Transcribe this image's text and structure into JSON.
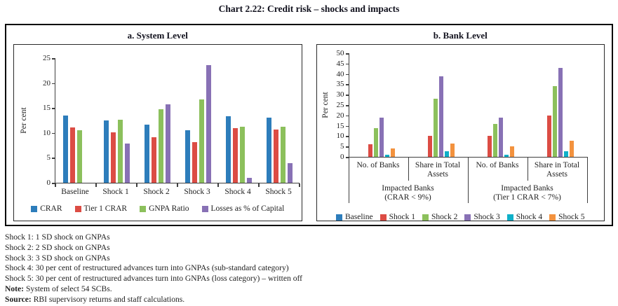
{
  "title": "Chart 2.22: Credit risk – shocks and impacts",
  "chart_data": [
    {
      "type": "bar",
      "title": "a. System Level",
      "ylabel": "Per cent",
      "ylim": [
        0,
        25
      ],
      "yticks": [
        0,
        5,
        10,
        15,
        20,
        25
      ],
      "grid": false,
      "legend_position": "bottom",
      "categories": [
        "Baseline",
        "Shock 1",
        "Shock 2",
        "Shock 3",
        "Shock 4",
        "Shock 5"
      ],
      "series": [
        {
          "name": "CRAR",
          "color": "#2D7DBB",
          "values": [
            13.5,
            12.5,
            11.6,
            10.6,
            13.4,
            13.1
          ]
        },
        {
          "name": "Tier 1 CRAR",
          "color": "#DC4C44",
          "values": [
            11.1,
            10.1,
            9.2,
            8.2,
            11.0,
            10.7
          ]
        },
        {
          "name": "GNPA Ratio",
          "color": "#8CC05C",
          "values": [
            10.6,
            12.6,
            14.7,
            16.7,
            11.2,
            11.2
          ]
        },
        {
          "name": "Losses as % of Capital",
          "color": "#8871B5",
          "values": [
            0,
            7.9,
            15.7,
            23.6,
            1.0,
            3.9
          ]
        }
      ]
    },
    {
      "type": "bar",
      "title": "b. Bank Level",
      "ylabel": "Per cent",
      "ylim": [
        0,
        50
      ],
      "yticks": [
        0,
        5,
        10,
        15,
        20,
        25,
        30,
        35,
        40,
        45,
        50
      ],
      "grid": false,
      "legend_position": "bottom",
      "categories": [
        "No. of Banks",
        "Share in Total Assets",
        "No. of Banks",
        "Share in Total Assets"
      ],
      "group_labels": [
        {
          "line1": "Impacted Banks",
          "line2": "(CRAR < 9%)"
        },
        {
          "line1": "Impacted Banks",
          "line2": "(Tier 1 CRAR < 7%)"
        }
      ],
      "series": [
        {
          "name": "Baseline",
          "color": "#2D7DBB",
          "values": [
            0,
            0,
            0,
            0
          ]
        },
        {
          "name": "Shock 1",
          "color": "#DC4C44",
          "values": [
            6,
            10,
            10,
            20
          ]
        },
        {
          "name": "Shock 2",
          "color": "#8CC05C",
          "values": [
            14,
            28,
            16,
            34
          ]
        },
        {
          "name": "Shock 3",
          "color": "#8871B5",
          "values": [
            19,
            39,
            19,
            43
          ]
        },
        {
          "name": "Shock 4",
          "color": "#0FB0C8",
          "values": [
            1,
            2.7,
            1,
            2.7
          ]
        },
        {
          "name": "Shock 5",
          "color": "#F3923E",
          "values": [
            4,
            6.3,
            5,
            7.8
          ]
        }
      ]
    }
  ],
  "footnotes": [
    {
      "bold": "",
      "text": "Shock 1: 1 SD shock on GNPAs"
    },
    {
      "bold": "",
      "text": "Shock 2: 2 SD shock on GNPAs"
    },
    {
      "bold": "",
      "text": "Shock 3: 3 SD shock on GNPAs"
    },
    {
      "bold": "",
      "text": "Shock 4: 30 per cent of restructured advances turn into GNPAs (sub-standard category)"
    },
    {
      "bold": "",
      "text": "Shock 5: 30 per cent of restructured advances turn into GNPAs (loss category) – written off"
    },
    {
      "bold": "Note:",
      "text": " System of select 54 SCBs."
    },
    {
      "bold": "Source:",
      "text": " RBI supervisory returns and staff calculations."
    }
  ]
}
